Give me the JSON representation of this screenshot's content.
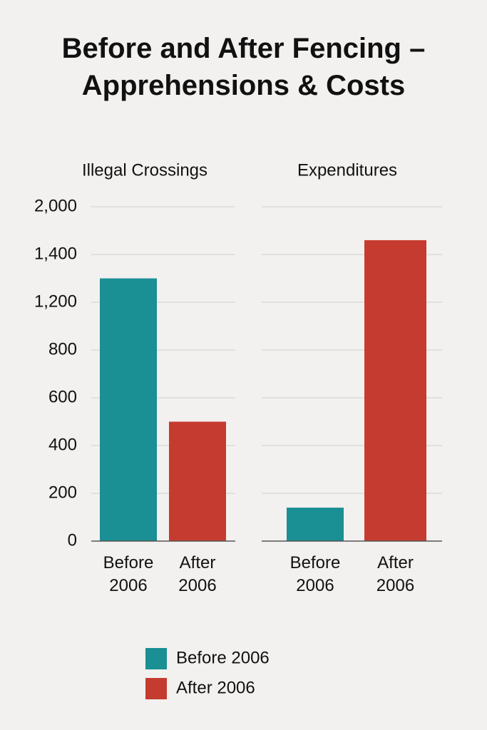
{
  "title": "Before and After Fencing –Apprehensions & Costs",
  "chart_data": [
    {
      "type": "bar",
      "title": "Illegal Crossings",
      "series": [
        {
          "name": "Before 2006",
          "color": "#1a8f94",
          "values": [
            1300
          ]
        },
        {
          "name": "After 2006",
          "color": "#c63b2f",
          "values": [
            500
          ]
        }
      ],
      "ylim": [
        0,
        2000
      ],
      "yticks": [
        0,
        200,
        400,
        600,
        800,
        {
          "value": 1200,
          "label": "1,200"
        },
        {
          "value": 1400,
          "label": "1,400"
        },
        {
          "value": 2000,
          "label": "2,000"
        }
      ],
      "grid": true
    },
    {
      "type": "bar",
      "title": "Expenditures",
      "series": [
        {
          "name": "Before 2006",
          "color": "#1a8f94",
          "values": [
            140
          ]
        },
        {
          "name": "After 2006",
          "color": "#c63b2f",
          "values": [
            1580
          ]
        }
      ],
      "ylim": [
        0,
        2000
      ],
      "yticks": [
        0,
        200,
        400,
        600,
        800,
        1200,
        1400,
        2000
      ],
      "grid": true
    }
  ]
}
